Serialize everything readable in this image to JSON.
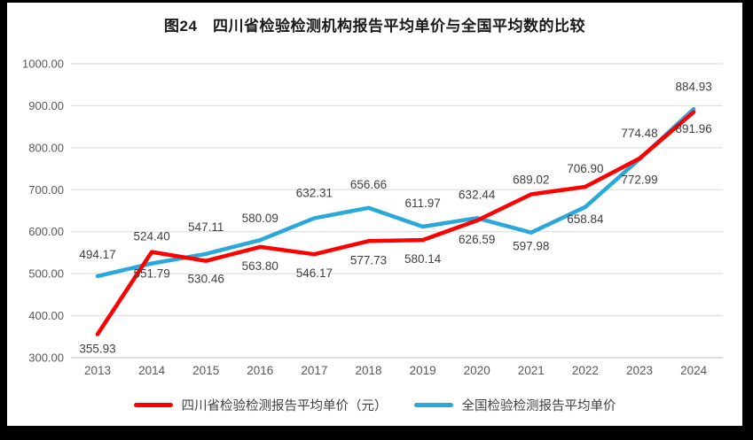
{
  "title": "图24　四川省检验检测机构报告平均单价与全国平均数的比较",
  "chart_data": {
    "type": "line",
    "title": "图24　四川省检验检测机构报告平均单价与全国平均数的比较",
    "categories": [
      "2013",
      "2014",
      "2015",
      "2016",
      "2017",
      "2018",
      "2019",
      "2020",
      "2021",
      "2022",
      "2023",
      "2024"
    ],
    "series": [
      {
        "name": "四川省检验检测报告平均单价（元）",
        "color": "#FE0000",
        "values": [
          355.93,
          551.79,
          530.46,
          563.8,
          546.17,
          577.73,
          580.14,
          626.59,
          689.02,
          706.9,
          774.48,
          884.93
        ]
      },
      {
        "name": "全国检验检测报告平均单价",
        "color": "#29A8DC",
        "values": [
          494.17,
          524.4,
          547.11,
          580.09,
          632.31,
          656.66,
          611.97,
          632.44,
          597.98,
          658.84,
          772.99,
          891.96
        ]
      }
    ],
    "xlabel": "",
    "ylabel": "",
    "ylim": [
      300,
      1000
    ],
    "ytick_step": 100,
    "ytick_labels": [
      "1000.00",
      "900.00",
      "800.00",
      "700.00",
      "600.00",
      "500.00",
      "400.00",
      "300.00"
    ],
    "grid": "horizontal",
    "legend_position": "bottom",
    "data_labels": "on"
  },
  "colors": {
    "frame": "#000000",
    "plot_background": "#ffffff",
    "gridline": "#D9D9D9",
    "axis_line": "#BFBFBF",
    "tick_text": "#595959",
    "data_label_text": "#404040",
    "title_text": "#1a1a1a"
  }
}
